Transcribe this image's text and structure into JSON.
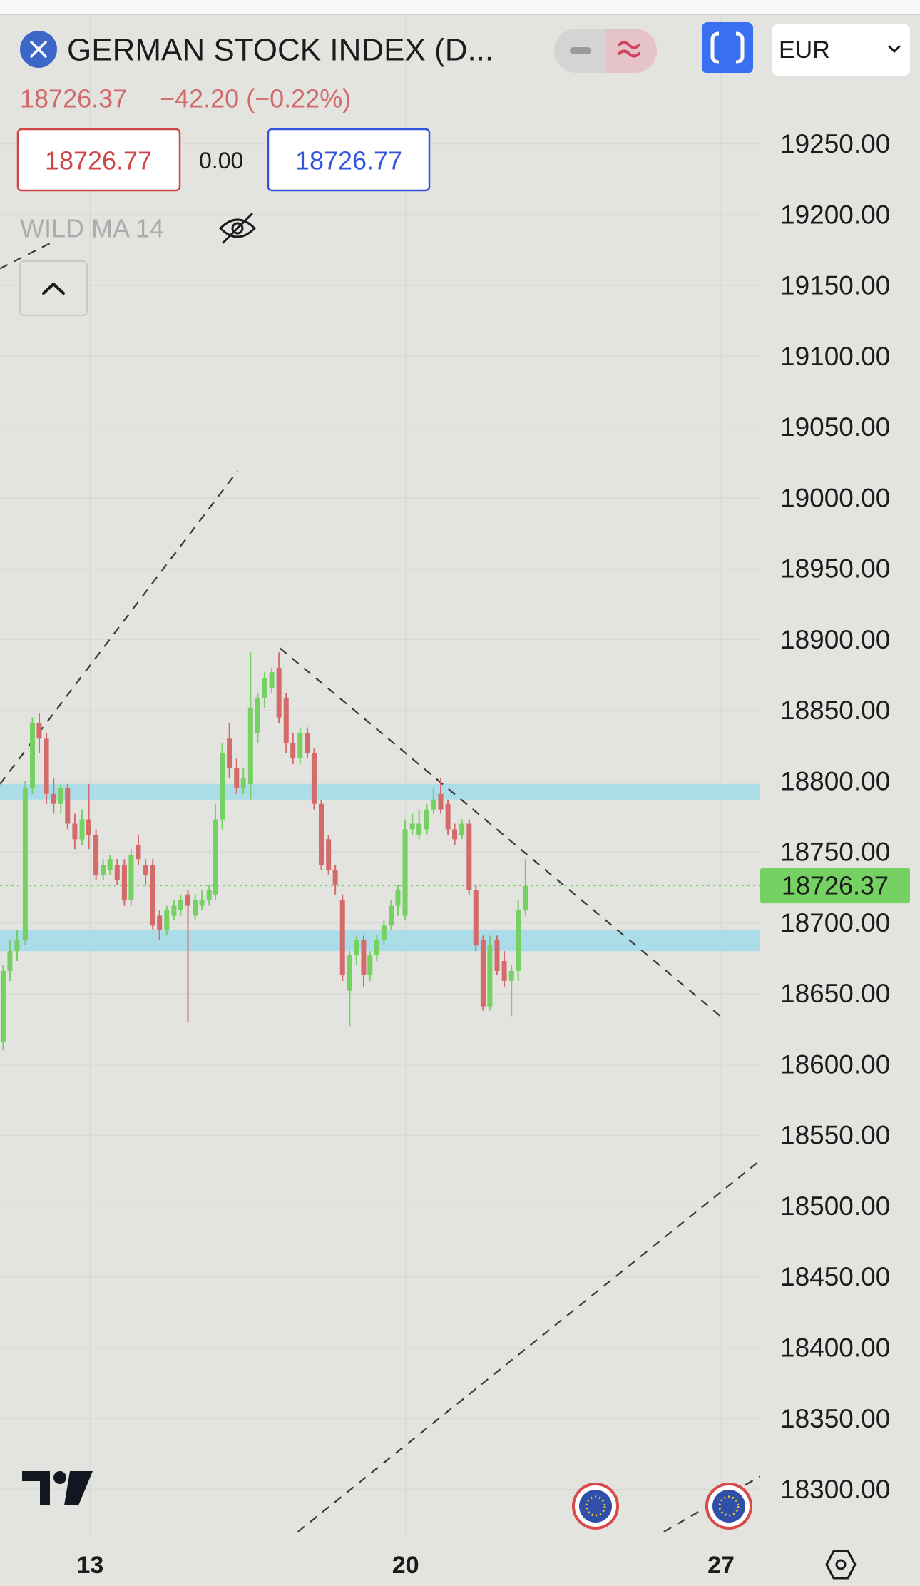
{
  "header": {
    "title": "GERMAN STOCK INDEX (D...",
    "currency": "EUR",
    "quote": {
      "price": "18726.37",
      "change": "−42.20 (−0.22%)"
    },
    "sell": "18726.77",
    "spread": "0.00",
    "buy": "18726.77",
    "indicator": "WILD MA 14"
  },
  "chart_data": {
    "type": "candlestick",
    "xlim": [
      11,
      27.87
    ],
    "xticks": [
      13,
      20,
      27
    ],
    "ylim": [
      18266,
      19341
    ],
    "yticks": [
      {
        "value": 18300,
        "label": "18300.00"
      },
      {
        "value": 18350,
        "label": "18350.00"
      },
      {
        "value": 18400,
        "label": "18400.00"
      },
      {
        "value": 18450,
        "label": "18450.00"
      },
      {
        "value": 18500,
        "label": "18500.00"
      },
      {
        "value": 18550,
        "label": "18550.00"
      },
      {
        "value": 18600,
        "label": "18600.00"
      },
      {
        "value": 18650,
        "label": "18650.00"
      },
      {
        "value": 18700,
        "label": "18700.00"
      },
      {
        "value": 18750,
        "label": "18750.00"
      },
      {
        "value": 18800,
        "label": "18800.00"
      },
      {
        "value": 18850,
        "label": "18850.00"
      },
      {
        "value": 18900,
        "label": "18900.00"
      },
      {
        "value": 18950,
        "label": "18950.00"
      },
      {
        "value": 19000,
        "label": "19000.00"
      },
      {
        "value": 19050,
        "label": "19050.00"
      },
      {
        "value": 19100,
        "label": "19100.00"
      },
      {
        "value": 19150,
        "label": "19150.00"
      },
      {
        "value": 19200,
        "label": "19200.00"
      },
      {
        "value": 19250,
        "label": "19250.00"
      }
    ],
    "grid": true,
    "up_color": "#74d162",
    "down_color": "#d46a6a",
    "candles": {
      "x": [
        11.07,
        11.22,
        11.38,
        11.56,
        11.72,
        11.87,
        12.03,
        12.19,
        12.35,
        12.5,
        12.66,
        12.82,
        12.97,
        13.13,
        13.29,
        13.44,
        13.6,
        13.76,
        13.91,
        14.07,
        14.23,
        14.39,
        14.54,
        14.7,
        14.86,
        15.01,
        15.17,
        15.33,
        15.48,
        15.64,
        15.78,
        15.93,
        16.09,
        16.25,
        16.4,
        16.56,
        16.72,
        16.87,
        17.03,
        17.19,
        17.35,
        17.5,
        17.66,
        17.82,
        17.97,
        18.13,
        18.29,
        18.44,
        18.6,
        18.76,
        18.91,
        19.07,
        19.21,
        19.36,
        19.52,
        19.68,
        19.83,
        19.99,
        20.15,
        20.3,
        20.47,
        20.62,
        20.78,
        20.94,
        21.09,
        21.25,
        21.41,
        21.56,
        21.72,
        21.87,
        22.03,
        22.19,
        22.35,
        22.5,
        22.66
      ],
      "open": [
        18616,
        18666,
        18680,
        18688,
        18795,
        18841,
        18830,
        18791,
        18784,
        18795,
        18770,
        18759,
        18773,
        18762,
        18734,
        18737,
        18741,
        18741,
        18716,
        18755,
        18741,
        18741,
        18705,
        18695,
        18705,
        18709,
        18720,
        18705,
        18712,
        18716,
        18720,
        18773,
        18830,
        18809,
        18795,
        18798,
        18834,
        18859,
        18866,
        18880,
        18859,
        18827,
        18816,
        18834,
        18820,
        18784,
        18759,
        18737,
        18716,
        18652,
        18677,
        18688,
        18663,
        18677,
        18688,
        18698,
        18712,
        18705,
        18766,
        18762,
        18766,
        18780,
        18791,
        18784,
        18766,
        18762,
        18770,
        18723,
        18688,
        18641,
        18688,
        18673,
        18659,
        18666,
        18709
      ],
      "high": [
        18670,
        18688,
        18695,
        18800,
        18845,
        18848,
        18834,
        18802,
        18798,
        18798,
        18777,
        18780,
        18798,
        18766,
        18745,
        18748,
        18745,
        18745,
        18752,
        18762,
        18745,
        18745,
        18709,
        18712,
        18716,
        18720,
        18723,
        18720,
        18723,
        18727,
        18784,
        18827,
        18841,
        18816,
        18809,
        18891,
        18862,
        18877,
        18880,
        18891,
        18862,
        18834,
        18838,
        18838,
        18823,
        18787,
        18762,
        18741,
        18720,
        18680,
        18691,
        18691,
        18680,
        18691,
        18702,
        18716,
        18727,
        18773,
        18777,
        18780,
        18784,
        18795,
        18802,
        18787,
        18770,
        18773,
        18773,
        18727,
        18691,
        18691,
        18691,
        18680,
        18670,
        18716,
        18745
      ],
      "low": [
        18610,
        18659,
        18673,
        18684,
        18791,
        18820,
        18784,
        18777,
        18777,
        18766,
        18752,
        18755,
        18752,
        18730,
        18730,
        18734,
        18727,
        18712,
        18712,
        18741,
        18727,
        18695,
        18688,
        18691,
        18702,
        18705,
        18630,
        18702,
        18709,
        18712,
        18716,
        18766,
        18802,
        18791,
        18791,
        18787,
        18827,
        18852,
        18862,
        18841,
        18820,
        18812,
        18812,
        18816,
        18780,
        18737,
        18734,
        18720,
        18659,
        18627,
        18670,
        18655,
        18659,
        18673,
        18684,
        18695,
        18705,
        18702,
        18762,
        18759,
        18762,
        18777,
        18777,
        18762,
        18755,
        18759,
        18720,
        18680,
        18638,
        18638,
        18663,
        18655,
        18634,
        18659,
        18705
      ],
      "close": [
        18666,
        18680,
        18688,
        18795,
        18841,
        18830,
        18791,
        18784,
        18795,
        18770,
        18759,
        18773,
        18762,
        18734,
        18741,
        18745,
        18730,
        18716,
        18748,
        18745,
        18734,
        18698,
        18695,
        18709,
        18712,
        18716,
        18712,
        18716,
        18716,
        18723,
        18773,
        18820,
        18809,
        18795,
        18802,
        18852,
        18859,
        18873,
        18877,
        18845,
        18827,
        18816,
        18834,
        18820,
        18784,
        18741,
        18737,
        18727,
        18663,
        18677,
        18688,
        18663,
        18677,
        18688,
        18698,
        18712,
        18723,
        18766,
        18770,
        18770,
        18780,
        18787,
        18780,
        18766,
        18759,
        18770,
        18723,
        18684,
        18641,
        18684,
        18666,
        18659,
        18666,
        18709,
        18726
      ]
    },
    "last_price": 18726.37,
    "last_price_color": "#74d162",
    "zones": [
      {
        "from": 18787,
        "to": 18798
      },
      {
        "from": 18680,
        "to": 18695
      }
    ],
    "zone_color": "#aadde8",
    "trendlines": [
      {
        "x": [
          11.0,
          12.12
        ],
        "y": [
          19162,
          19180
        ]
      },
      {
        "x": [
          11.0,
          16.27
        ],
        "y": [
          18798,
          19019
        ]
      },
      {
        "x": [
          17.21,
          26.99
        ],
        "y": [
          18894,
          18634
        ]
      },
      {
        "x": [
          17.61,
          27.86
        ],
        "y": [
          18270,
          18532
        ]
      },
      {
        "x": [
          25.73,
          27.86
        ],
        "y": [
          18270,
          18309
        ]
      }
    ]
  }
}
